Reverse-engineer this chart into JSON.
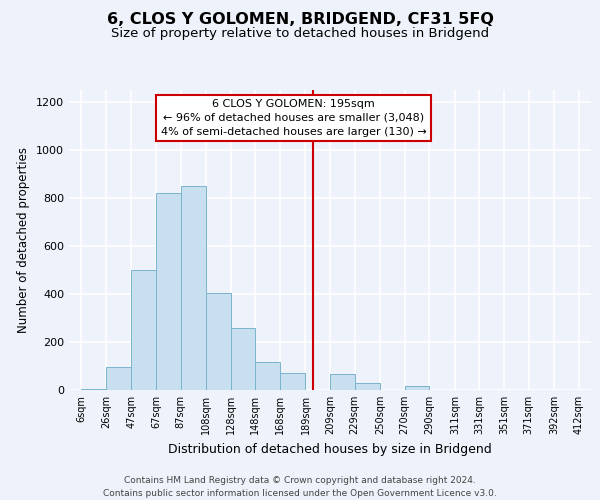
{
  "title": "6, CLOS Y GOLOMEN, BRIDGEND, CF31 5FQ",
  "subtitle": "Size of property relative to detached houses in Bridgend",
  "xlabel": "Distribution of detached houses by size in Bridgend",
  "ylabel": "Number of detached properties",
  "bar_edges": [
    6,
    26,
    47,
    67,
    87,
    108,
    128,
    148,
    168,
    189,
    209,
    229,
    250,
    270,
    290,
    311,
    331,
    351,
    371,
    392,
    412
  ],
  "bar_heights": [
    5,
    95,
    500,
    820,
    850,
    405,
    258,
    115,
    72,
    0,
    65,
    30,
    0,
    15,
    0,
    0,
    0,
    0,
    0,
    0
  ],
  "bar_color": "#c8dff0",
  "bar_edgecolor": "#7ab4cc",
  "vline_x": 195,
  "vline_color": "#cc0000",
  "annotation_title": "6 CLOS Y GOLOMEN: 195sqm",
  "annotation_line1": "← 96% of detached houses are smaller (3,048)",
  "annotation_line2": "4% of semi-detached houses are larger (130) →",
  "annotation_box_edgecolor": "#cc0000",
  "ylim": [
    0,
    1250
  ],
  "yticks": [
    0,
    200,
    400,
    600,
    800,
    1000,
    1200
  ],
  "xtick_labels": [
    "6sqm",
    "26sqm",
    "47sqm",
    "67sqm",
    "87sqm",
    "108sqm",
    "128sqm",
    "148sqm",
    "168sqm",
    "189sqm",
    "209sqm",
    "229sqm",
    "250sqm",
    "270sqm",
    "290sqm",
    "311sqm",
    "331sqm",
    "351sqm",
    "371sqm",
    "392sqm",
    "412sqm"
  ],
  "footer_line1": "Contains HM Land Registry data © Crown copyright and database right 2024.",
  "footer_line2": "Contains public sector information licensed under the Open Government Licence v3.0.",
  "bg_color": "#eef2fa",
  "grid_color": "#ffffff",
  "title_fontsize": 11.5,
  "subtitle_fontsize": 9.5,
  "xlabel_fontsize": 9,
  "ylabel_fontsize": 8.5,
  "tick_fontsize": 7,
  "footer_fontsize": 6.5,
  "annot_fontsize": 8
}
